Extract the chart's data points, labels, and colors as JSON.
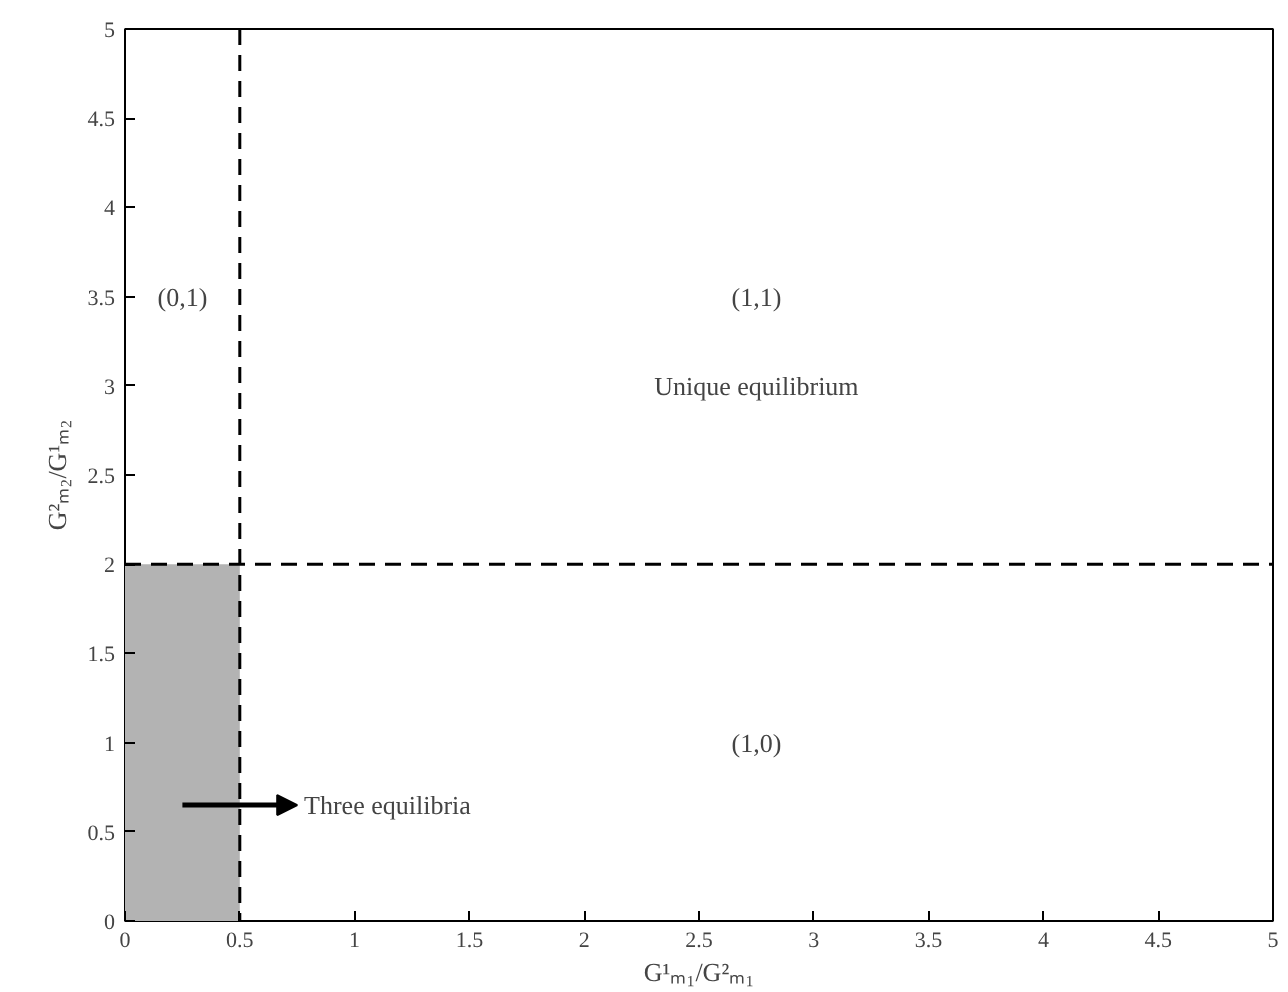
{
  "chart_data": {
    "type": "area",
    "xlabel": "G¹ₘ₁/G²ₘ₁",
    "ylabel": "G²ₘ₂/G¹ₘ₂",
    "xlim": [
      0,
      5
    ],
    "ylim": [
      0,
      5
    ],
    "xticks": [
      0,
      0.5,
      1,
      1.5,
      2,
      2.5,
      3,
      3.5,
      4,
      4.5,
      5
    ],
    "yticks": [
      0,
      0.5,
      1,
      1.5,
      2,
      2.5,
      3,
      3.5,
      4,
      4.5,
      5
    ],
    "series": [
      {
        "x": [
          0,
          0.5
        ],
        "values": [
          2,
          2
        ],
        "color": "#b3b3b3"
      }
    ],
    "ref_lines": [
      {
        "axis": "x",
        "value": 0.5,
        "color": "#000000",
        "line_style": "dashed"
      },
      {
        "axis": "y",
        "value": 2,
        "color": "#000000",
        "line_style": "dashed"
      }
    ],
    "annotations": [
      "(0,1)",
      "(1,1)",
      "Unique equilibrium",
      "(1,0)",
      "Three equilibria"
    ]
  }
}
